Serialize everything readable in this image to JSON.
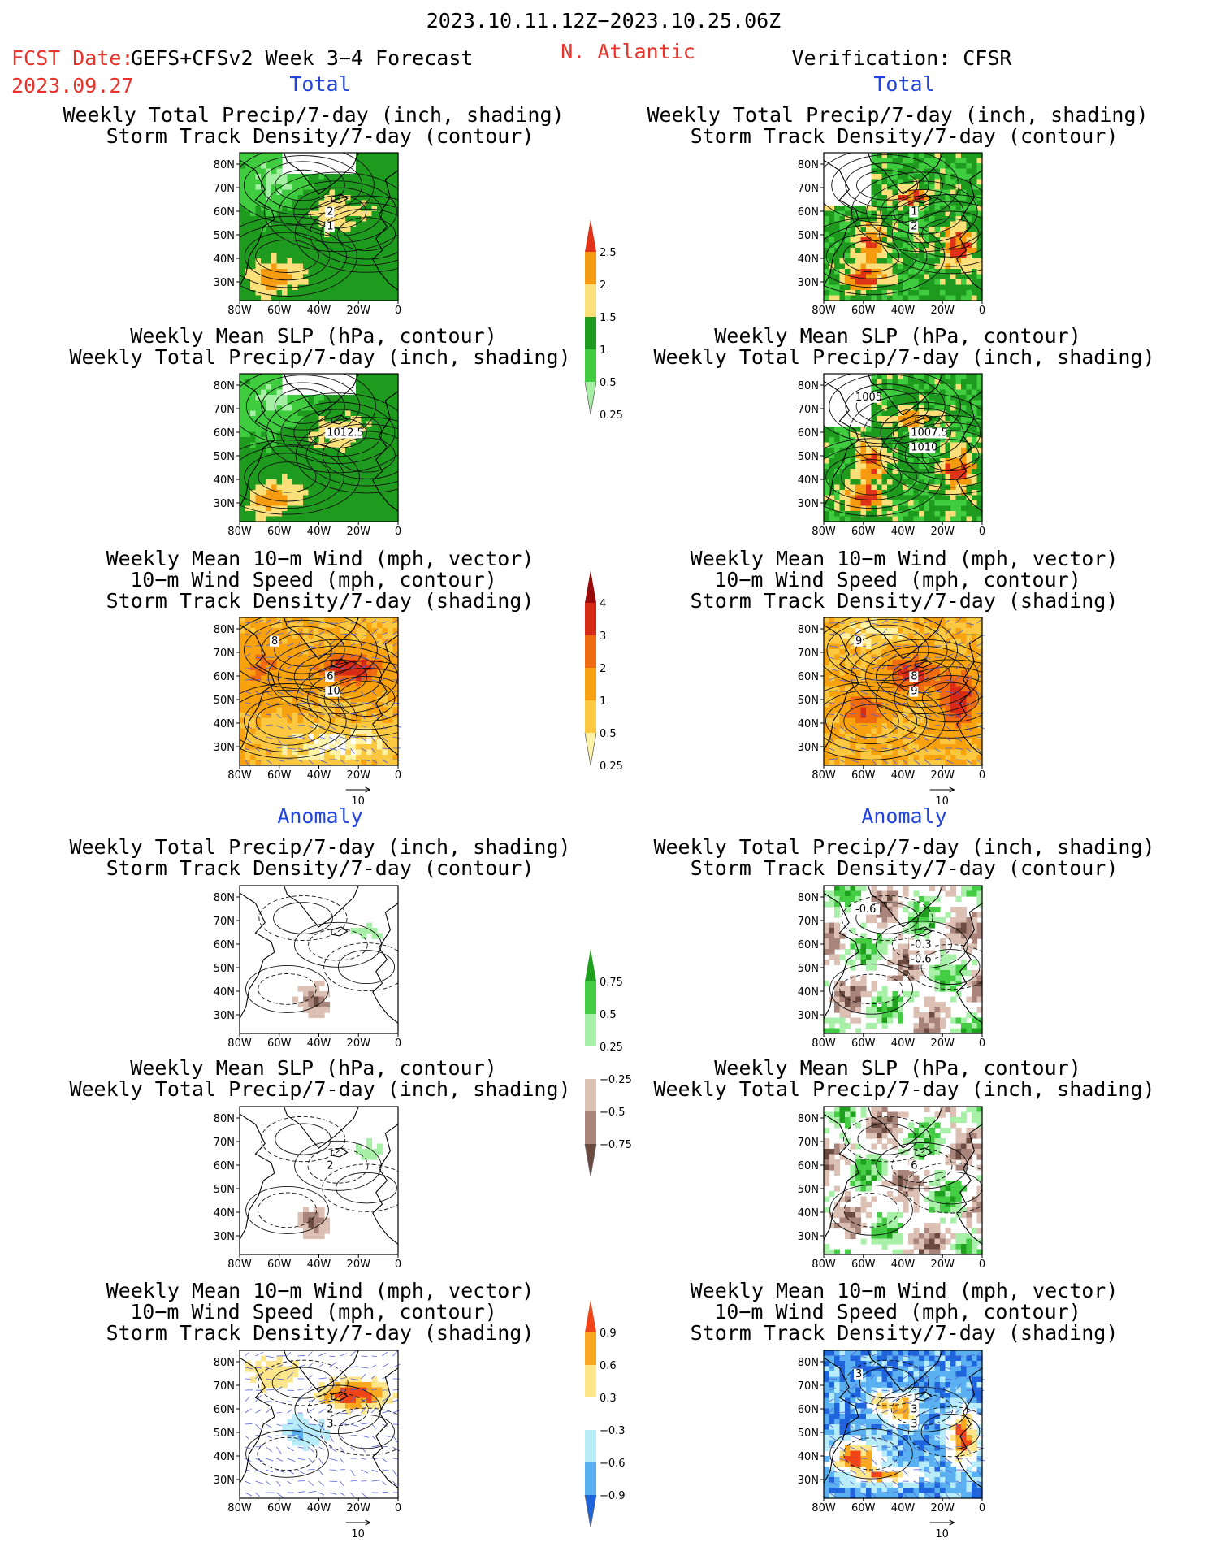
{
  "header": {
    "period": "2023.10.11.12Z−2023.10.25.06Z",
    "fcst_date_label": "FCST Date:",
    "model": "GEFS+CFSv2 Week 3−4 Forecast",
    "fcst_date": "2023.09.27",
    "region": "N. Atlantic",
    "verification": "Verification: CFSR"
  },
  "sections": {
    "total": "Total",
    "anomaly": "Anomaly"
  },
  "titles": {
    "precip_storm": [
      "Weekly Total Precip/7-day (inch, shading)",
      "Storm Track Density/7-day (contour)"
    ],
    "slp_precip": [
      "Weekly Mean SLP (hPa, contour)",
      "Weekly Total Precip/7-day (inch, shading)"
    ],
    "wind_storm": [
      "Weekly Mean 10−m Wind (mph, vector)",
      "10−m Wind Speed (mph, contour)",
      "Storm Track Density/7-day (shading)"
    ]
  },
  "axes": {
    "lat_ticks": [
      "80N",
      "70N",
      "60N",
      "50N",
      "40N",
      "30N"
    ],
    "lon_ticks": [
      "80W",
      "60W",
      "40W",
      "20W",
      "0"
    ]
  },
  "vector_ref": "10",
  "colorbars": {
    "precip_total": {
      "labels": [
        "2.5",
        "2",
        "1.5",
        "1",
        "0.5",
        "0.25"
      ],
      "colors": [
        "#e03216",
        "#f59b0f",
        "#fbe07a",
        "#1e9a1e",
        "#3fcc3f",
        "#a4efa4"
      ]
    },
    "storm_total": {
      "labels": [
        "4",
        "3",
        "2",
        "1",
        "0.5",
        "0.25"
      ],
      "colors": [
        "#9b0a0a",
        "#d92a16",
        "#f06a10",
        "#f7a20e",
        "#fbc840",
        "#fef2a6"
      ]
    },
    "precip_anom": {
      "labels": [
        "0.75",
        "0.5",
        "0.25",
        "−0.25",
        "−0.5",
        "−0.75"
      ],
      "colors": [
        "#1ea01e",
        "#44cc44",
        "#a8f0a8",
        "#ffffff",
        "#dcc0b4",
        "#a8847a",
        "#6b4a40"
      ]
    },
    "storm_anom": {
      "labels": [
        "0.9",
        "0.6",
        "0.3",
        "−0.3",
        "−0.6",
        "−0.9"
      ],
      "colors": [
        "#ef4518",
        "#f7a820",
        "#fde68a",
        "#ffffff",
        "#b8ecf8",
        "#5ab0f0",
        "#1e64dc"
      ]
    }
  },
  "map_labels": {
    "l1": [
      "2",
      "1"
    ],
    "r1": [
      "1",
      "2"
    ],
    "l2": [
      "1012.5"
    ],
    "r2": [
      "1007.5",
      "1010",
      "1005"
    ],
    "l3": [
      "6",
      "10",
      "8"
    ],
    "r3": [
      "8",
      "9",
      "9"
    ],
    "l4": [],
    "r4": [
      "-0.3",
      "-0.6",
      "-0.6"
    ],
    "l5": [
      "2"
    ],
    "r5": [
      "6"
    ],
    "l6": [
      "2",
      "3"
    ],
    "r6": [
      "3",
      "3",
      "3"
    ]
  },
  "maps": {
    "l1": {
      "type": "precip_total"
    },
    "r1": {
      "type": "precip_total_obs"
    },
    "l2": {
      "type": "precip_total"
    },
    "r2": {
      "type": "precip_total_obs"
    },
    "l3": {
      "type": "storm_total"
    },
    "r3": {
      "type": "storm_total_obs"
    },
    "l4": {
      "type": "precip_anom"
    },
    "r4": {
      "type": "precip_anom_obs"
    },
    "l5": {
      "type": "precip_anom"
    },
    "r5": {
      "type": "precip_anom_obs"
    },
    "l6": {
      "type": "storm_anom"
    },
    "r6": {
      "type": "storm_anom_obs"
    }
  }
}
